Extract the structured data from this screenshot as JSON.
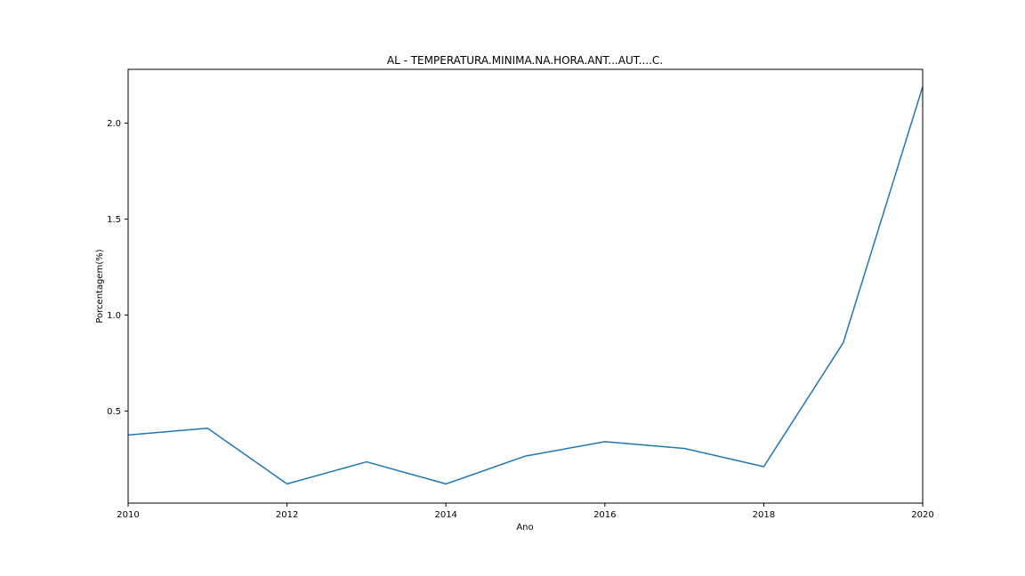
{
  "chart_data": {
    "type": "line",
    "title": "AL - TEMPERATURA.MINIMA.NA.HORA.ANT...AUT....C.",
    "xlabel": "Ano",
    "ylabel": "Porcentagem(%)",
    "xlim": [
      2010,
      2020
    ],
    "ylim": [
      0.02,
      2.28
    ],
    "xticks": [
      2010,
      2012,
      2014,
      2016,
      2018,
      2020
    ],
    "yticks": [
      0.5,
      1.0,
      1.5,
      2.0
    ],
    "ytick_labels": [
      "0.5",
      "1.0",
      "1.5",
      "2.0"
    ],
    "grid": false,
    "series": [
      {
        "color": "#1f77b4",
        "x": [
          2010,
          2011,
          2012,
          2013,
          2014,
          2015,
          2016,
          2017,
          2018,
          2019,
          2020
        ],
        "y": [
          0.375,
          0.41,
          0.12,
          0.235,
          0.12,
          0.265,
          0.34,
          0.305,
          0.21,
          0.855,
          2.19
        ]
      }
    ]
  }
}
